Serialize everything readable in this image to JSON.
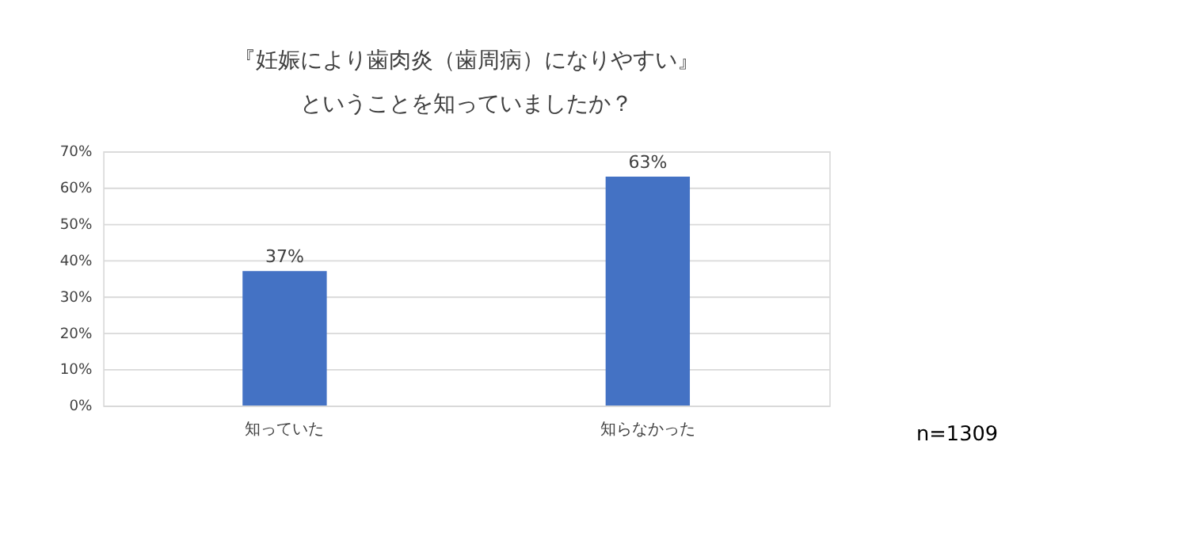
{
  "chart_data": {
    "type": "bar",
    "title": [
      "『妊娠により歯肉炎（歯周病）になりやすい』",
      "ということを知っていましたか？"
    ],
    "categories": [
      "知っていた",
      "知らなかった"
    ],
    "series": [
      {
        "color": "#4472c4",
        "values": [
          37,
          63
        ],
        "value_labels": [
          "37%",
          "63%"
        ]
      }
    ],
    "ylim": [
      0,
      70
    ],
    "yticks": [
      {
        "value": 0,
        "label": "0%"
      },
      {
        "value": 10,
        "label": "10%"
      },
      {
        "value": 20,
        "label": "20%"
      },
      {
        "value": 30,
        "label": "30%"
      },
      {
        "value": 40,
        "label": "40%"
      },
      {
        "value": 50,
        "label": "50%"
      },
      {
        "value": 60,
        "label": "60%"
      },
      {
        "value": 70,
        "label": "70%"
      }
    ],
    "grid": "y",
    "annotations": [
      "n=1309"
    ]
  }
}
